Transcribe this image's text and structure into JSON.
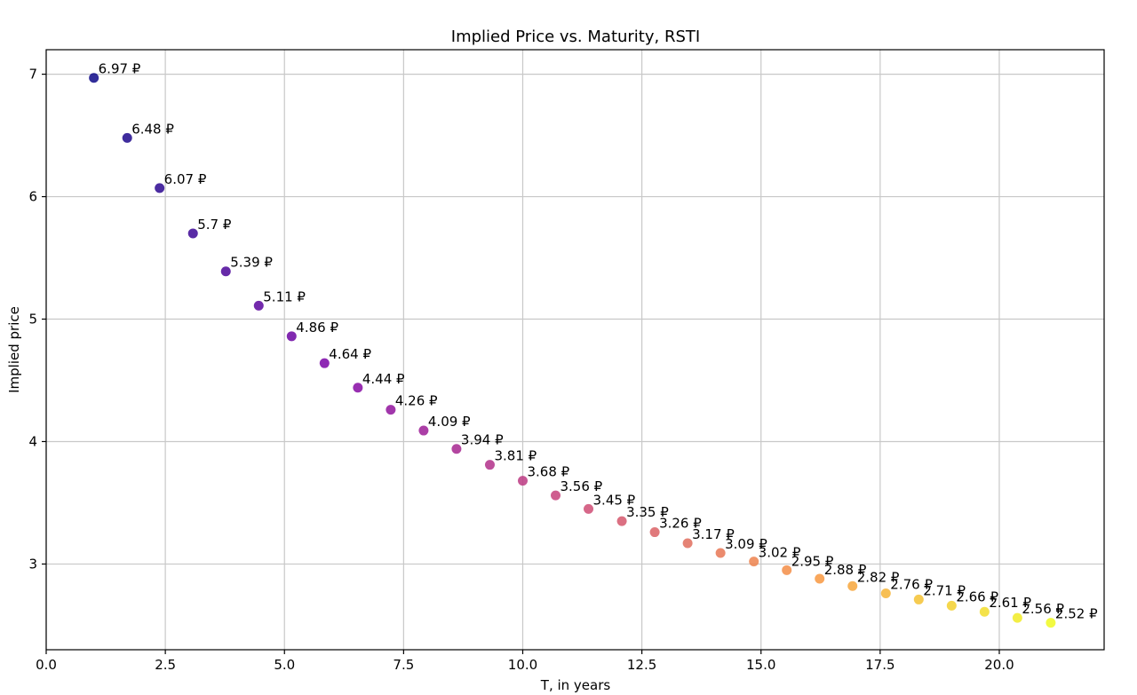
{
  "chart_data": {
    "type": "scatter",
    "title": "Implied Price vs. Maturity, RSTI",
    "xlabel": "T, in years",
    "ylabel": "Implied price",
    "xlim": [
      0,
      22.2
    ],
    "ylim": [
      2.3,
      7.2
    ],
    "grid": true,
    "colormap": "plasma",
    "x_ticks": [
      0.0,
      2.5,
      5.0,
      7.5,
      10.0,
      12.5,
      15.0,
      17.5,
      20.0
    ],
    "x_tick_labels": [
      "0.0",
      "2.5",
      "5.0",
      "7.5",
      "10.0",
      "12.5",
      "15.0",
      "17.5",
      "20.0"
    ],
    "y_ticks": [
      3,
      4,
      5,
      6,
      7
    ],
    "y_tick_labels": [
      "3",
      "4",
      "5",
      "6",
      "7"
    ],
    "points": [
      {
        "x": 1.0,
        "y": 6.97,
        "label": "6.97 ₽"
      },
      {
        "x": 1.7,
        "y": 6.48,
        "label": "6.48 ₽"
      },
      {
        "x": 2.38,
        "y": 6.07,
        "label": "6.07 ₽"
      },
      {
        "x": 3.08,
        "y": 5.7,
        "label": "5.7 ₽"
      },
      {
        "x": 3.77,
        "y": 5.39,
        "label": "5.39 ₽"
      },
      {
        "x": 4.46,
        "y": 5.11,
        "label": "5.11 ₽"
      },
      {
        "x": 5.15,
        "y": 4.86,
        "label": "4.86 ₽"
      },
      {
        "x": 5.84,
        "y": 4.64,
        "label": "4.64 ₽"
      },
      {
        "x": 6.54,
        "y": 4.44,
        "label": "4.44 ₽"
      },
      {
        "x": 7.23,
        "y": 4.26,
        "label": "4.26 ₽"
      },
      {
        "x": 7.92,
        "y": 4.09,
        "label": "4.09 ₽"
      },
      {
        "x": 8.61,
        "y": 3.94,
        "label": "3.94 ₽"
      },
      {
        "x": 9.31,
        "y": 3.81,
        "label": "3.81 ₽"
      },
      {
        "x": 10.0,
        "y": 3.68,
        "label": "3.68 ₽"
      },
      {
        "x": 10.69,
        "y": 3.56,
        "label": "3.56 ₽"
      },
      {
        "x": 11.38,
        "y": 3.45,
        "label": "3.45 ₽"
      },
      {
        "x": 12.08,
        "y": 3.35,
        "label": "3.35 ₽"
      },
      {
        "x": 12.77,
        "y": 3.26,
        "label": "3.26 ₽"
      },
      {
        "x": 13.46,
        "y": 3.17,
        "label": "3.17 ₽"
      },
      {
        "x": 14.15,
        "y": 3.09,
        "label": "3.09 ₽"
      },
      {
        "x": 14.85,
        "y": 3.02,
        "label": "3.02 ₽"
      },
      {
        "x": 15.54,
        "y": 2.95,
        "label": "2.95 ₽"
      },
      {
        "x": 16.23,
        "y": 2.88,
        "label": "2.88 ₽"
      },
      {
        "x": 16.92,
        "y": 2.82,
        "label": "2.82 ₽"
      },
      {
        "x": 17.62,
        "y": 2.76,
        "label": "2.76 ₽"
      },
      {
        "x": 18.31,
        "y": 2.71,
        "label": "2.71 ₽"
      },
      {
        "x": 19.0,
        "y": 2.66,
        "label": "2.66 ₽"
      },
      {
        "x": 19.69,
        "y": 2.61,
        "label": "2.61 ₽"
      },
      {
        "x": 20.38,
        "y": 2.56,
        "label": "2.56 ₽"
      },
      {
        "x": 21.08,
        "y": 2.52,
        "label": "2.52 ₽"
      }
    ]
  }
}
